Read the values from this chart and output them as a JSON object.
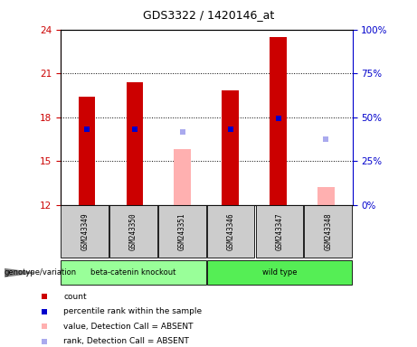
{
  "title": "GDS3322 / 1420146_at",
  "samples": [
    "GSM243349",
    "GSM243350",
    "GSM243351",
    "GSM243346",
    "GSM243347",
    "GSM243348"
  ],
  "ylim_left": [
    12,
    24
  ],
  "ylim_right": [
    0,
    100
  ],
  "yticks_left": [
    12,
    15,
    18,
    21,
    24
  ],
  "yticks_right": [
    0,
    25,
    50,
    75,
    100
  ],
  "ytick_labels_right": [
    "0%",
    "25%",
    "50%",
    "75%",
    "100%"
  ],
  "bar_heights_red": [
    19.4,
    20.4,
    0,
    19.85,
    23.5,
    0
  ],
  "bar_color_red": "#cc0000",
  "bar_color_pink": "#ffb0b0",
  "bar_heights_pink": [
    0,
    0,
    15.8,
    0,
    0,
    13.2
  ],
  "blue_marker_y": [
    17.2,
    17.2,
    -1,
    17.2,
    17.9,
    -1
  ],
  "lightblue_marker_y": [
    -1,
    -1,
    17.0,
    -1,
    -1,
    16.5
  ],
  "bar_width": 0.35,
  "group1_label": "beta-catenin knockout",
  "group2_label": "wild type",
  "group1_color": "#99ff99",
  "group2_color": "#55ee55",
  "legend_count_color": "#cc0000",
  "legend_blue_color": "#0000cc",
  "legend_pink_color": "#ffb0b0",
  "legend_lightblue_color": "#aaaaee",
  "left_axis_color": "#cc0000",
  "right_axis_color": "#0000cc",
  "gray_box_color": "#cccccc",
  "genotype_label": "genotype/variation"
}
